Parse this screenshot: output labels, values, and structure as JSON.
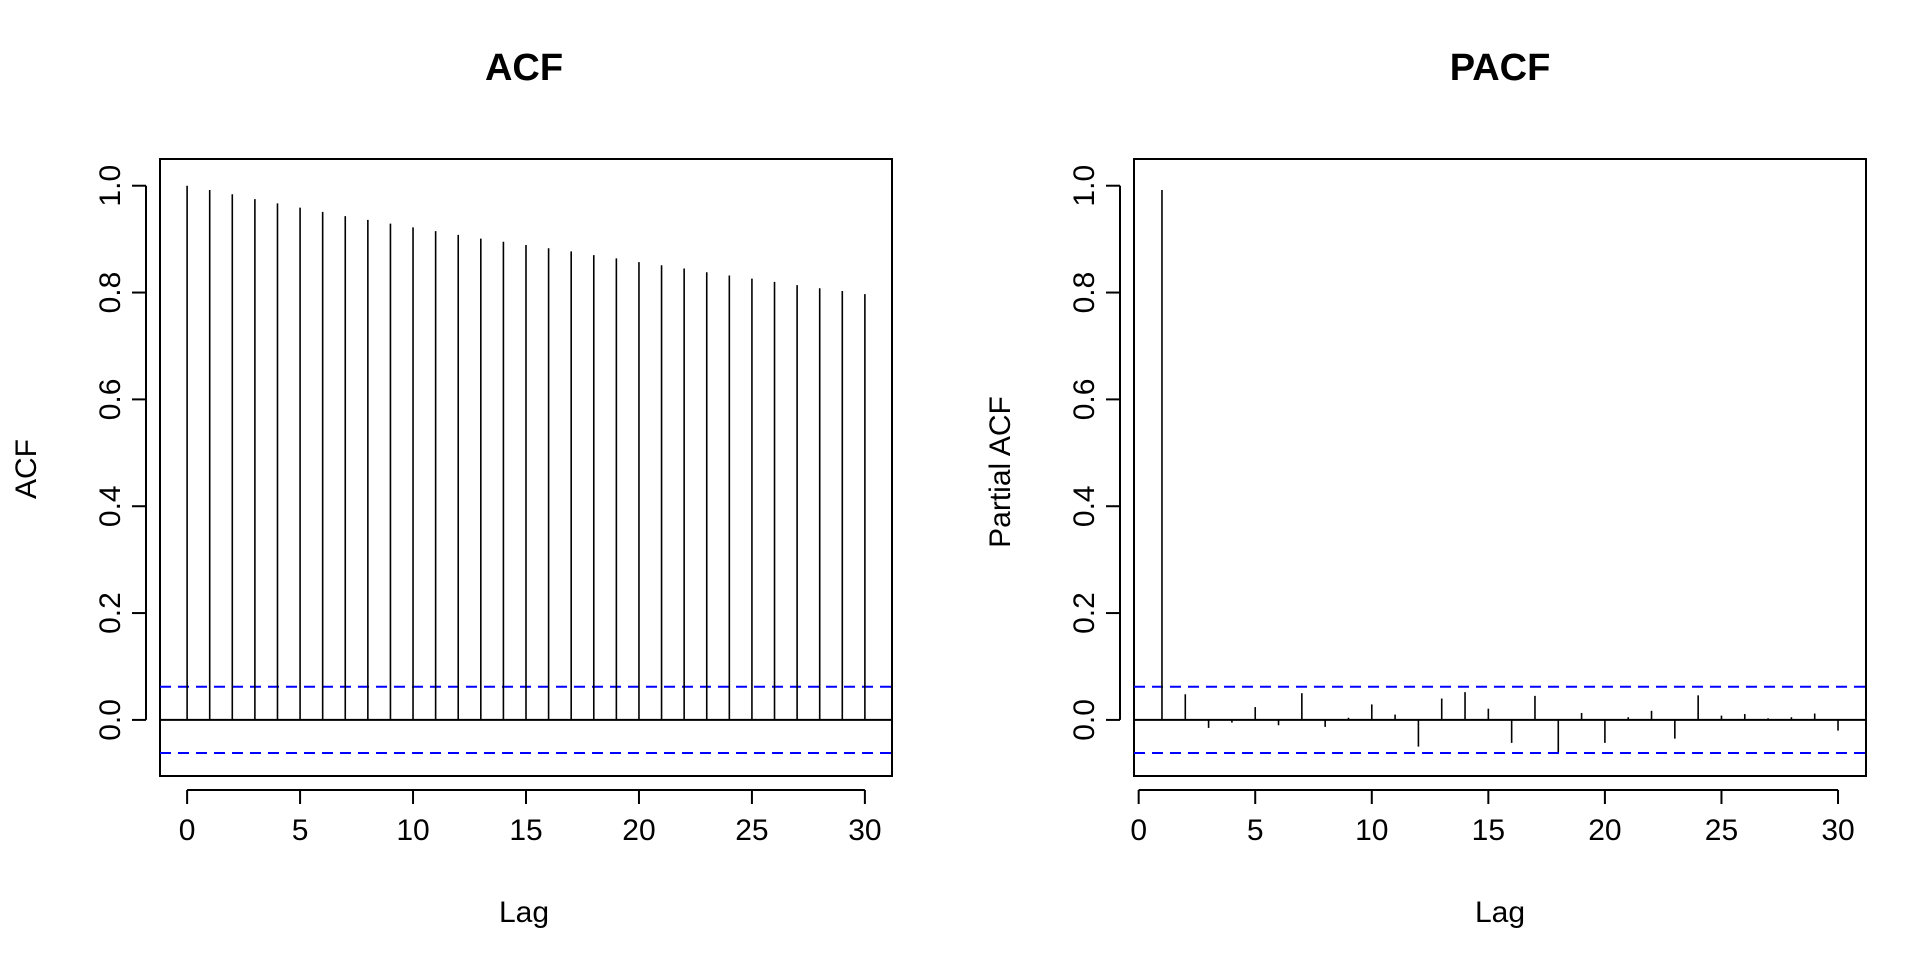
{
  "chart_data": [
    {
      "type": "bar",
      "subtype": "autocorrelation-stem",
      "title": "ACF",
      "xlabel": "Lag",
      "ylabel": "ACF",
      "xlim": [
        -1.2,
        31.2
      ],
      "ylim": [
        -0.105,
        1.05
      ],
      "xticks": [
        0,
        5,
        10,
        15,
        20,
        25,
        30
      ],
      "xtick_labels": [
        "0",
        "5",
        "10",
        "15",
        "20",
        "25",
        "30"
      ],
      "yticks": [
        0.0,
        0.2,
        0.4,
        0.6,
        0.8,
        1.0
      ],
      "ytick_labels": [
        "0.0",
        "0.2",
        "0.4",
        "0.6",
        "0.8",
        "1.0"
      ],
      "lags": [
        0,
        1,
        2,
        3,
        4,
        5,
        6,
        7,
        8,
        9,
        10,
        11,
        12,
        13,
        14,
        15,
        16,
        17,
        18,
        19,
        20,
        21,
        22,
        23,
        24,
        25,
        26,
        27,
        28,
        29,
        30
      ],
      "values": [
        1.0,
        0.992,
        0.984,
        0.975,
        0.967,
        0.959,
        0.951,
        0.943,
        0.936,
        0.929,
        0.922,
        0.915,
        0.908,
        0.901,
        0.895,
        0.889,
        0.883,
        0.877,
        0.87,
        0.864,
        0.857,
        0.851,
        0.845,
        0.838,
        0.832,
        0.826,
        0.82,
        0.814,
        0.808,
        0.803,
        0.797
      ],
      "confidence_bound": 0.062,
      "bound_color": "#0000ff",
      "line_color": "#000000",
      "grid": false
    },
    {
      "type": "bar",
      "subtype": "autocorrelation-stem",
      "title": "PACF",
      "xlabel": "Lag",
      "ylabel": "Partial ACF",
      "xlim": [
        -0.2,
        31.2
      ],
      "ylim": [
        -0.105,
        1.05
      ],
      "xticks": [
        0,
        5,
        10,
        15,
        20,
        25,
        30
      ],
      "xtick_labels": [
        "0",
        "5",
        "10",
        "15",
        "20",
        "25",
        "30"
      ],
      "yticks": [
        0.0,
        0.2,
        0.4,
        0.6,
        0.8,
        1.0
      ],
      "ytick_labels": [
        "0.0",
        "0.2",
        "0.4",
        "0.6",
        "0.8",
        "1.0"
      ],
      "lags": [
        1,
        2,
        3,
        4,
        5,
        6,
        7,
        8,
        9,
        10,
        11,
        12,
        13,
        14,
        15,
        16,
        17,
        18,
        19,
        20,
        21,
        22,
        23,
        24,
        25,
        26,
        27,
        28,
        29,
        30
      ],
      "values": [
        0.992,
        0.048,
        -0.015,
        -0.005,
        0.024,
        -0.01,
        0.05,
        -0.013,
        0.004,
        0.029,
        0.01,
        -0.05,
        0.04,
        0.052,
        0.021,
        -0.043,
        0.045,
        -0.06,
        0.013,
        -0.043,
        0.005,
        0.017,
        -0.035,
        0.046,
        0.008,
        0.011,
        0.003,
        0.005,
        0.012,
        -0.02
      ],
      "confidence_bound": 0.062,
      "bound_color": "#0000ff",
      "line_color": "#000000",
      "grid": false
    }
  ]
}
